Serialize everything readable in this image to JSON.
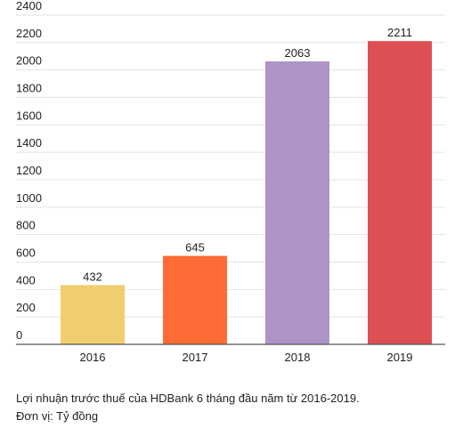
{
  "chart_data": {
    "type": "bar",
    "categories": [
      "2016",
      "2017",
      "2018",
      "2019"
    ],
    "values": [
      432,
      645,
      2063,
      2211
    ],
    "colors": [
      "#f0cd6e",
      "#fe6b35",
      "#ad94c8",
      "#dc5054"
    ],
    "yticks": [
      0,
      200,
      400,
      600,
      800,
      1000,
      1200,
      1400,
      1600,
      1800,
      2000,
      2200,
      2400
    ],
    "ylim": [
      0,
      2400
    ],
    "grid": true,
    "legend": "none",
    "title": "",
    "xlabel": "",
    "ylabel": ""
  },
  "caption": {
    "line1": "Lợi nhuận trước thuế của HDBank 6 tháng đầu năm từ 2016-2019.",
    "line2": "Đơn vị: Tỷ đồng"
  }
}
